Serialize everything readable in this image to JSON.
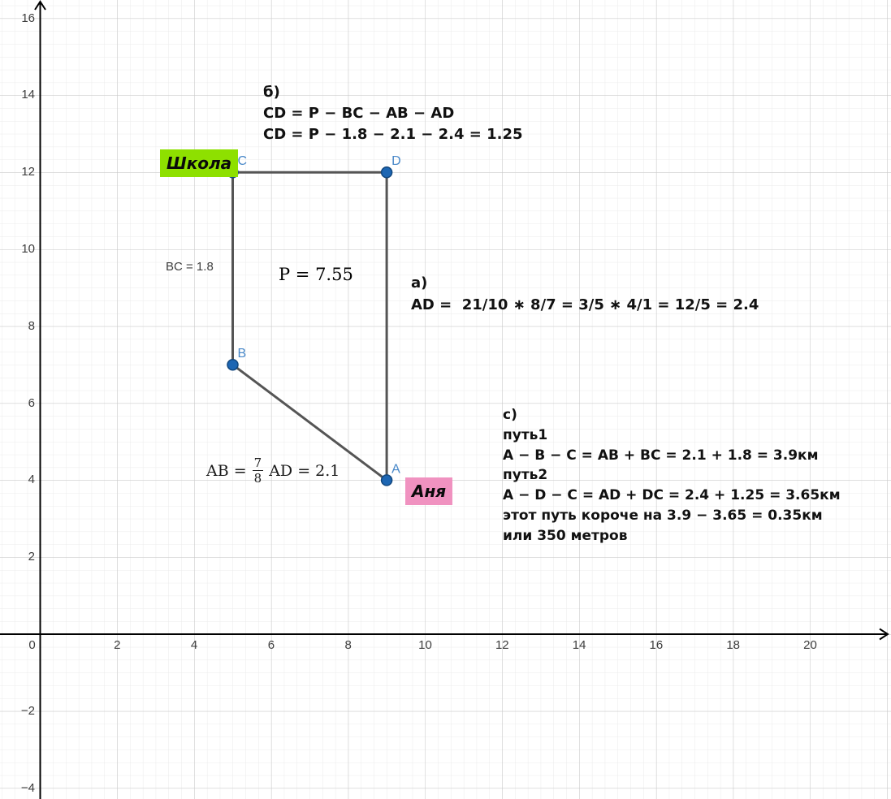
{
  "chart_data": {
    "type": "scatter",
    "description": "GeoGebra-style geometry view: quadrilateral path A-B-C-D between school and Anya's home",
    "points": [
      {
        "name": "A",
        "x": 9,
        "y": 4
      },
      {
        "name": "B",
        "x": 5,
        "y": 7
      },
      {
        "name": "C",
        "x": 5,
        "y": 12
      },
      {
        "name": "D",
        "x": 9,
        "y": 12
      }
    ],
    "segments": [
      [
        "C",
        "D"
      ],
      [
        "C",
        "B"
      ],
      [
        "B",
        "A"
      ],
      [
        "D",
        "A"
      ]
    ],
    "x_ticks": [
      0,
      2,
      4,
      6,
      8,
      10,
      12,
      14,
      16,
      18,
      20
    ],
    "y_ticks": [
      16,
      14,
      12,
      10,
      8,
      6,
      4,
      2,
      -2,
      -4
    ],
    "xlim": [
      -1.0,
      22.1
    ],
    "ylim": [
      -4.3,
      16.5
    ],
    "grid": "on",
    "grid_minor_per_major": 6
  },
  "annotations": {
    "b": {
      "heading": "б)",
      "lines": [
        "CD = P − BC − AB − AD",
        "CD = P − 1.8 − 2.1 − 2.4 = 1.25"
      ]
    },
    "a": {
      "heading": "a)",
      "line": "AD =  21/10 ∗ 8/7 = 3/5 ∗ 4/1 = 12/5 = 2.4"
    },
    "c": {
      "heading": "c)",
      "lines": [
        "путь1",
        "A − B − C = AB + BC = 2.1 + 1.8 = 3.9км",
        "путь2",
        "A − D − C = AD + DC = 2.4 + 1.25 = 3.65км",
        "этот путь короче на 3.9 − 3.65 = 0.35км",
        "или 350 метров"
      ]
    }
  },
  "labels": {
    "school": {
      "text": "Школа",
      "bg": "#8ee000"
    },
    "anya": {
      "text": "Аня",
      "bg": "#f092c0"
    },
    "bc": "BC = 1.8",
    "p": "P = 7.55",
    "ab_prefix": "AB =",
    "ab_num": "7",
    "ab_den": "8",
    "ab_suffix": "AD = 2.1"
  },
  "colors": {
    "point_fill": "#1d66b3",
    "point_stroke": "#12477e",
    "point_label": "#4787c8",
    "segment": "#555555",
    "axis": "#000000",
    "grid_major": "#c6c6c6",
    "grid_minor": "#ebebeb",
    "tick_text": "#3d3d3d"
  }
}
